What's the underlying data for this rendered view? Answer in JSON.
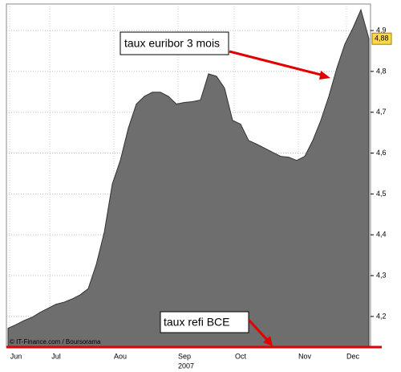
{
  "chart_data": {
    "type": "area",
    "categories": [
      null,
      "Jun",
      null,
      null,
      null,
      null,
      "Jul",
      null,
      null,
      null,
      null,
      null,
      null,
      null,
      "Aou",
      null,
      null,
      null,
      null,
      null,
      null,
      null,
      "Sep",
      null,
      null,
      null,
      null,
      null,
      null,
      "Oct",
      null,
      null,
      null,
      null,
      null,
      null,
      null,
      "Nov",
      null,
      null,
      null,
      null,
      null,
      "Dec",
      null,
      null
    ],
    "x_axis_label": "2007",
    "series": [
      {
        "name": "taux euribor 3 mois",
        "color": "#6e6e6e",
        "values": [
          4.171,
          4.18,
          4.19,
          4.198,
          4.21,
          4.22,
          4.23,
          4.235,
          4.243,
          4.253,
          4.268,
          4.327,
          4.406,
          4.524,
          4.582,
          4.661,
          4.72,
          4.739,
          4.749,
          4.749,
          4.739,
          4.72,
          4.724,
          4.726,
          4.73,
          4.794,
          4.788,
          4.759,
          4.68,
          4.671,
          4.631,
          4.622,
          4.612,
          4.602,
          4.592,
          4.59,
          4.582,
          4.592,
          4.631,
          4.68,
          4.739,
          4.808,
          4.867,
          4.906,
          4.951,
          4.88
        ]
      }
    ],
    "last_value": {
      "value": 4.88,
      "label": "4,88"
    },
    "ylim": [
      4.125,
      4.965
    ],
    "yticks": [
      {
        "value": 4.2,
        "label": "4,2"
      },
      {
        "value": 4.3,
        "label": "4,3"
      },
      {
        "value": 4.4,
        "label": "4,4"
      },
      {
        "value": 4.5,
        "label": "4,5"
      },
      {
        "value": 4.6,
        "label": "4,6"
      },
      {
        "value": 4.7,
        "label": "4,7"
      },
      {
        "value": 4.8,
        "label": "4,8"
      },
      {
        "value": 4.9,
        "label": "4,9"
      }
    ],
    "grid": true,
    "annotations": [
      "taux euribor 3 mois",
      "taux refi BCE"
    ],
    "source": "© IT-Finance.com / Boursorama"
  }
}
